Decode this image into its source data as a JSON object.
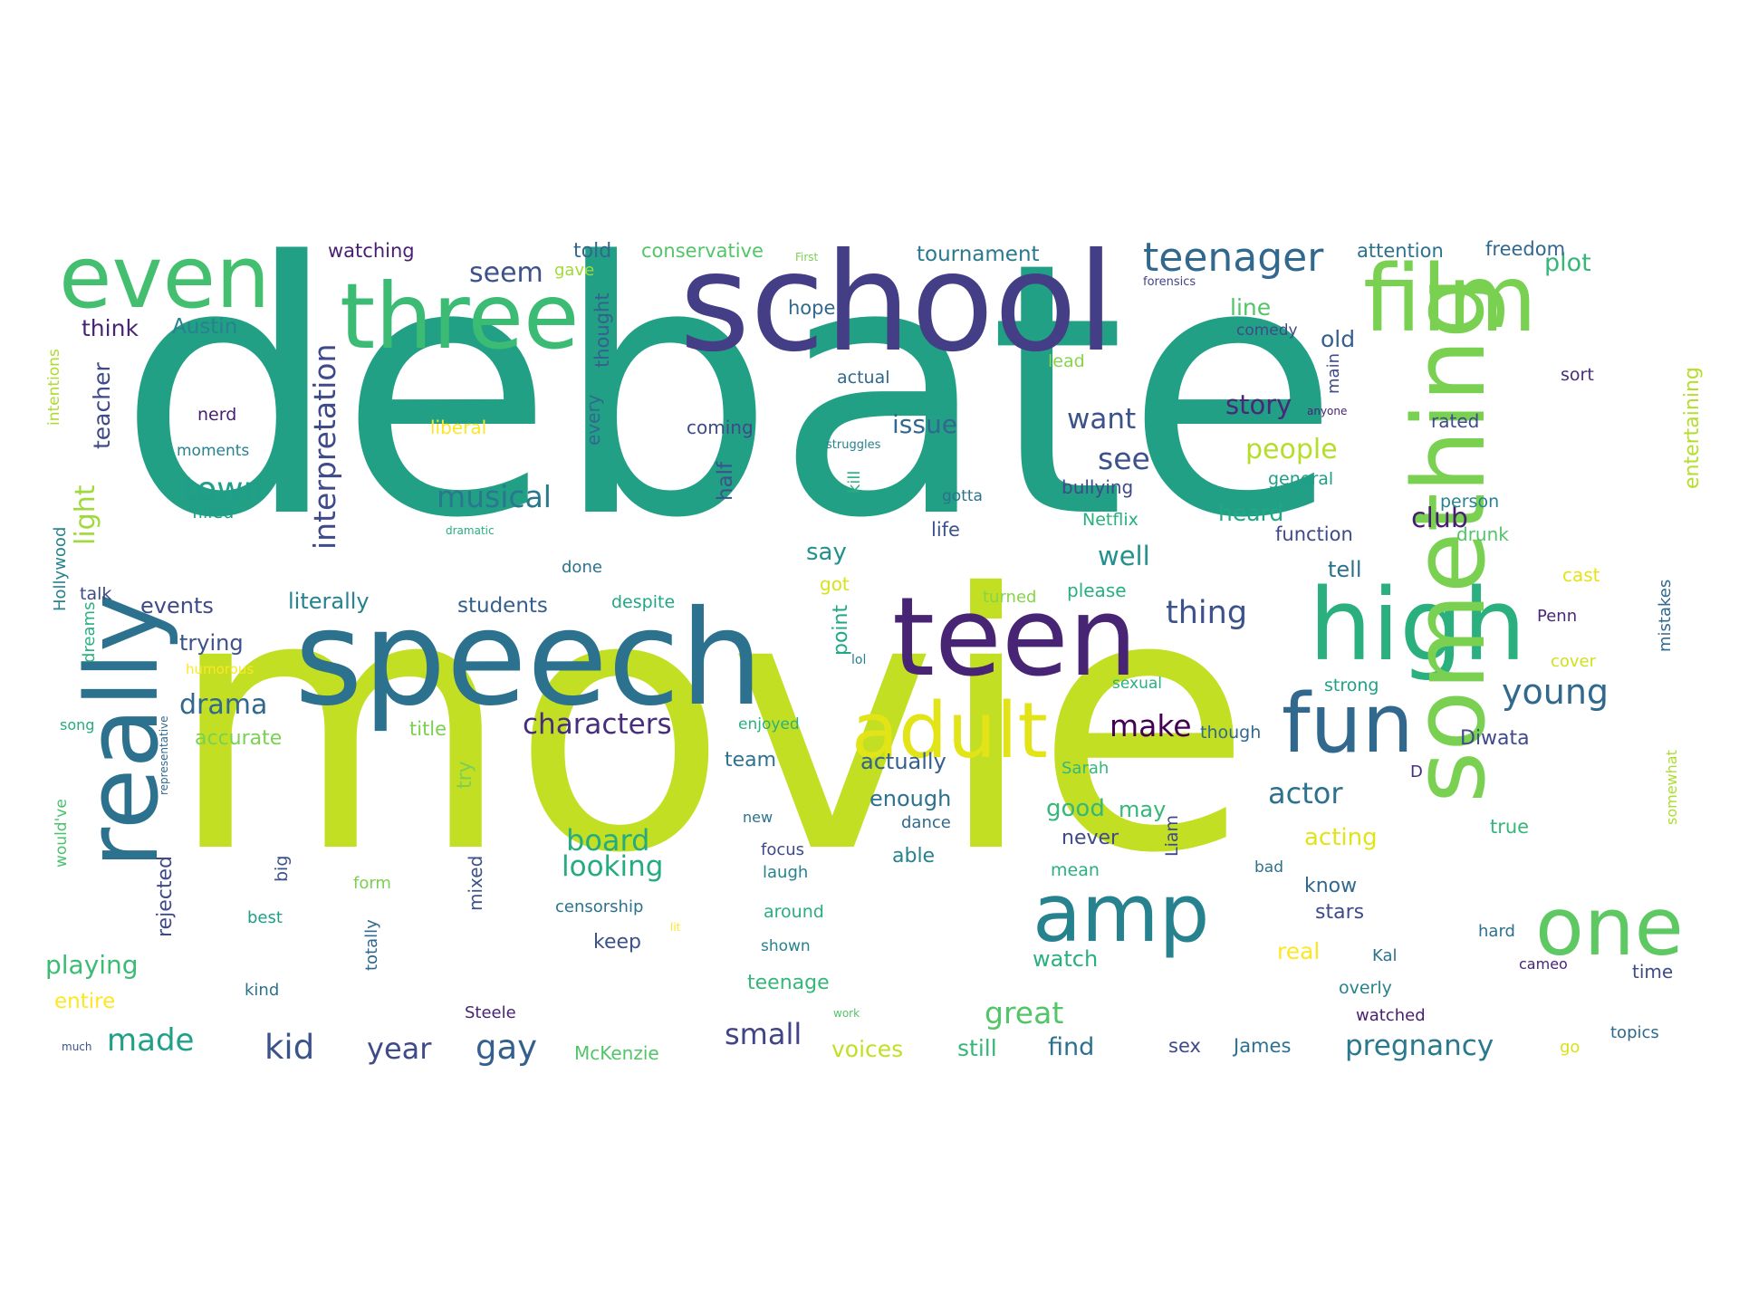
{
  "words": [
    {
      "text": "debate",
      "color": "#22a085"
    },
    {
      "text": "movie",
      "color": "#c2df23"
    },
    {
      "text": "school",
      "color": "#433e85"
    },
    {
      "text": "speech",
      "color": "#2c728e"
    },
    {
      "text": "three",
      "color": "#3cbb75"
    },
    {
      "text": "film",
      "color": "#7ad151"
    },
    {
      "text": "teen",
      "color": "#482475"
    },
    {
      "text": "high",
      "color": "#2ab07f"
    },
    {
      "text": "something",
      "color": "#7ad151"
    },
    {
      "text": "even",
      "color": "#44bf70"
    },
    {
      "text": "really",
      "color": "#2c728e"
    },
    {
      "text": "amp",
      "color": "#26828e"
    },
    {
      "text": "fun",
      "color": "#31688e"
    },
    {
      "text": "one",
      "color": "#5ec962"
    },
    {
      "text": "adult",
      "color": "#e2e418"
    },
    {
      "text": "teenager",
      "color": "#31688e"
    },
    {
      "text": "interpretation",
      "color": "#3e4a89"
    },
    {
      "text": "characters",
      "color": "#472d7b"
    },
    {
      "text": "musical",
      "color": "#2a788e"
    },
    {
      "text": "town",
      "color": "#1f9e89"
    },
    {
      "text": "young",
      "color": "#31688e"
    },
    {
      "text": "actor",
      "color": "#2c728e"
    },
    {
      "text": "thing",
      "color": "#3b528b"
    },
    {
      "text": "kid",
      "color": "#3b528b"
    },
    {
      "text": "year",
      "color": "#3e4a89"
    },
    {
      "text": "gay",
      "color": "#35608d"
    },
    {
      "text": "made",
      "color": "#1fa188"
    },
    {
      "text": "pregnancy",
      "color": "#2a788e"
    },
    {
      "text": "small",
      "color": "#414487"
    },
    {
      "text": "great",
      "color": "#52c569"
    },
    {
      "text": "drama",
      "color": "#31688e"
    },
    {
      "text": "make",
      "color": "#440154"
    },
    {
      "text": "looking",
      "color": "#25ab82"
    },
    {
      "text": "board",
      "color": "#25ab82"
    },
    {
      "text": "want",
      "color": "#3b528b"
    },
    {
      "text": "see",
      "color": "#3b528b"
    },
    {
      "text": "issue",
      "color": "#31688e"
    },
    {
      "text": "story",
      "color": "#482878"
    },
    {
      "text": "seem",
      "color": "#3b528b"
    },
    {
      "text": "people",
      "color": "#b5de2b"
    },
    {
      "text": "club",
      "color": "#481f70"
    },
    {
      "text": "plot",
      "color": "#35b779"
    },
    {
      "text": "well",
      "color": "#21918c"
    },
    {
      "text": "light",
      "color": "#9fda3a"
    },
    {
      "text": "teacher",
      "color": "#3e4a89"
    },
    {
      "text": "playing",
      "color": "#3cbb75"
    },
    {
      "text": "watching",
      "color": "#481f70"
    },
    {
      "text": "told",
      "color": "#31688e"
    },
    {
      "text": "conservative",
      "color": "#52c569"
    },
    {
      "text": "tournament",
      "color": "#2a788e"
    },
    {
      "text": "attention",
      "color": "#2c728e"
    },
    {
      "text": "freedom",
      "color": "#31688e"
    },
    {
      "text": "gave",
      "color": "#a0da39"
    },
    {
      "text": "First",
      "color": "#7ad151"
    },
    {
      "text": "forensics",
      "color": "#414487"
    },
    {
      "text": "Austin",
      "color": "#26828e"
    },
    {
      "text": "think",
      "color": "#482475"
    },
    {
      "text": "hope",
      "color": "#31688e"
    },
    {
      "text": "thought",
      "color": "#35608d"
    },
    {
      "text": "line",
      "color": "#52c569"
    },
    {
      "text": "comedy",
      "color": "#3e4a89"
    },
    {
      "text": "old",
      "color": "#35608d"
    },
    {
      "text": "lead",
      "color": "#86d549"
    },
    {
      "text": "actual",
      "color": "#31688e"
    },
    {
      "text": "main",
      "color": "#3e4a89"
    },
    {
      "text": "sort",
      "color": "#472d7b"
    },
    {
      "text": "entertaining",
      "color": "#b5de2b"
    },
    {
      "text": "nerd",
      "color": "#481f70"
    },
    {
      "text": "moments",
      "color": "#26828e"
    },
    {
      "text": "liberal",
      "color": "#fde725"
    },
    {
      "text": "coming",
      "color": "#3e4a89"
    },
    {
      "text": "every",
      "color": "#31688e"
    },
    {
      "text": "anyone",
      "color": "#482475"
    },
    {
      "text": "rated",
      "color": "#3e4a89"
    },
    {
      "text": "struggles",
      "color": "#26828e"
    },
    {
      "text": "half",
      "color": "#3b528b"
    },
    {
      "text": "gotta",
      "color": "#2c728e"
    },
    {
      "text": "bullying",
      "color": "#3e4a89"
    },
    {
      "text": "general",
      "color": "#1f9e89"
    },
    {
      "text": "intentions",
      "color": "#addc30"
    },
    {
      "text": "filled",
      "color": "#1f9e89"
    },
    {
      "text": "kill",
      "color": "#29af7f"
    },
    {
      "text": "life",
      "color": "#3b528b"
    },
    {
      "text": "Netflix",
      "color": "#2ab07f"
    },
    {
      "text": "heard",
      "color": "#22a785"
    },
    {
      "text": "function",
      "color": "#3e4a89"
    },
    {
      "text": "person",
      "color": "#26828e"
    },
    {
      "text": "drunk",
      "color": "#52c569"
    },
    {
      "text": "dramatic",
      "color": "#27ad81"
    },
    {
      "text": "say",
      "color": "#21918c"
    },
    {
      "text": "done",
      "color": "#2c728e"
    },
    {
      "text": "tell",
      "color": "#2c728e"
    },
    {
      "text": "cast",
      "color": "#e2e418"
    },
    {
      "text": "Hollywood",
      "color": "#26828e"
    },
    {
      "text": "talk",
      "color": "#3e4a89"
    },
    {
      "text": "events",
      "color": "#3e4a89"
    },
    {
      "text": "literally",
      "color": "#26828e"
    },
    {
      "text": "students",
      "color": "#35608d"
    },
    {
      "text": "despite",
      "color": "#22a785"
    },
    {
      "text": "got",
      "color": "#d8e219"
    },
    {
      "text": "please",
      "color": "#29af7f"
    },
    {
      "text": "turned",
      "color": "#86d549"
    },
    {
      "text": "mistakes",
      "color": "#31688e"
    },
    {
      "text": "dreams",
      "color": "#2ab07f"
    },
    {
      "text": "trying",
      "color": "#3b528b"
    },
    {
      "text": "humorous",
      "color": "#fde725"
    },
    {
      "text": "point",
      "color": "#22a785"
    },
    {
      "text": "lol",
      "color": "#26828e"
    },
    {
      "text": "sexual",
      "color": "#2ab07f"
    },
    {
      "text": "strong",
      "color": "#1fa188"
    },
    {
      "text": "cover",
      "color": "#d0e11c"
    },
    {
      "text": "Penn",
      "color": "#482878"
    },
    {
      "text": "song",
      "color": "#25ab82"
    },
    {
      "text": "accurate",
      "color": "#7ad151"
    },
    {
      "text": "title",
      "color": "#7ad151"
    },
    {
      "text": "enjoyed",
      "color": "#2ab07f"
    },
    {
      "text": "though",
      "color": "#31688e"
    },
    {
      "text": "Diwata",
      "color": "#3e4a89"
    },
    {
      "text": "team",
      "color": "#2c728e"
    },
    {
      "text": "actually",
      "color": "#35608d"
    },
    {
      "text": "Sarah",
      "color": "#35b779"
    },
    {
      "text": "D",
      "color": "#472d7b"
    },
    {
      "text": "somewhat",
      "color": "#addc30"
    },
    {
      "text": "would've",
      "color": "#4ac16d"
    },
    {
      "text": "representative",
      "color": "#31688e"
    },
    {
      "text": "try",
      "color": "#7ad151"
    },
    {
      "text": "enough",
      "color": "#2c728e"
    },
    {
      "text": "good",
      "color": "#35b779"
    },
    {
      "text": "may",
      "color": "#35b779"
    },
    {
      "text": "new",
      "color": "#2c728e"
    },
    {
      "text": "dance",
      "color": "#31688e"
    },
    {
      "text": "never",
      "color": "#3e4a89"
    },
    {
      "text": "Liam",
      "color": "#3e4a89"
    },
    {
      "text": "acting",
      "color": "#e2e418"
    },
    {
      "text": "true",
      "color": "#35b779"
    },
    {
      "text": "focus",
      "color": "#3e4a89"
    },
    {
      "text": "able",
      "color": "#26828e"
    },
    {
      "text": "mean",
      "color": "#2ab07f"
    },
    {
      "text": "big",
      "color": "#3b528b"
    },
    {
      "text": "rejected",
      "color": "#3e4a89"
    },
    {
      "text": "laugh",
      "color": "#26828e"
    },
    {
      "text": "form",
      "color": "#7ad151"
    },
    {
      "text": "mixed",
      "color": "#3b528b"
    },
    {
      "text": "bad",
      "color": "#2c728e"
    },
    {
      "text": "know",
      "color": "#31688e"
    },
    {
      "text": "best",
      "color": "#1f9e89"
    },
    {
      "text": "censorship",
      "color": "#2c728e"
    },
    {
      "text": "around",
      "color": "#29af7f"
    },
    {
      "text": "stars",
      "color": "#3e4a89"
    },
    {
      "text": "lit",
      "color": "#fde725"
    },
    {
      "text": "keep",
      "color": "#3b528b"
    },
    {
      "text": "watch",
      "color": "#2ab07f"
    },
    {
      "text": "real",
      "color": "#fde725"
    },
    {
      "text": "hard",
      "color": "#2c728e"
    },
    {
      "text": "totally",
      "color": "#31688e"
    },
    {
      "text": "shown",
      "color": "#26828e"
    },
    {
      "text": "Kal",
      "color": "#2c728e"
    },
    {
      "text": "cameo",
      "color": "#482475"
    },
    {
      "text": "time",
      "color": "#3e4a89"
    },
    {
      "text": "kind",
      "color": "#2c728e"
    },
    {
      "text": "teenage",
      "color": "#35b779"
    },
    {
      "text": "overly",
      "color": "#26828e"
    },
    {
      "text": "entire",
      "color": "#fde725"
    },
    {
      "text": "Steele",
      "color": "#482475"
    },
    {
      "text": "work",
      "color": "#52c569"
    },
    {
      "text": "watched",
      "color": "#481f70"
    },
    {
      "text": "topics",
      "color": "#31688e"
    },
    {
      "text": "much",
      "color": "#3b528b"
    },
    {
      "text": "McKenzie",
      "color": "#52c569"
    },
    {
      "text": "voices",
      "color": "#c2df23"
    },
    {
      "text": "still",
      "color": "#35b779"
    },
    {
      "text": "find",
      "color": "#2c728e"
    },
    {
      "text": "sex",
      "color": "#3e4a89"
    },
    {
      "text": "James",
      "color": "#2c728e"
    },
    {
      "text": "go",
      "color": "#d8e219"
    }
  ]
}
